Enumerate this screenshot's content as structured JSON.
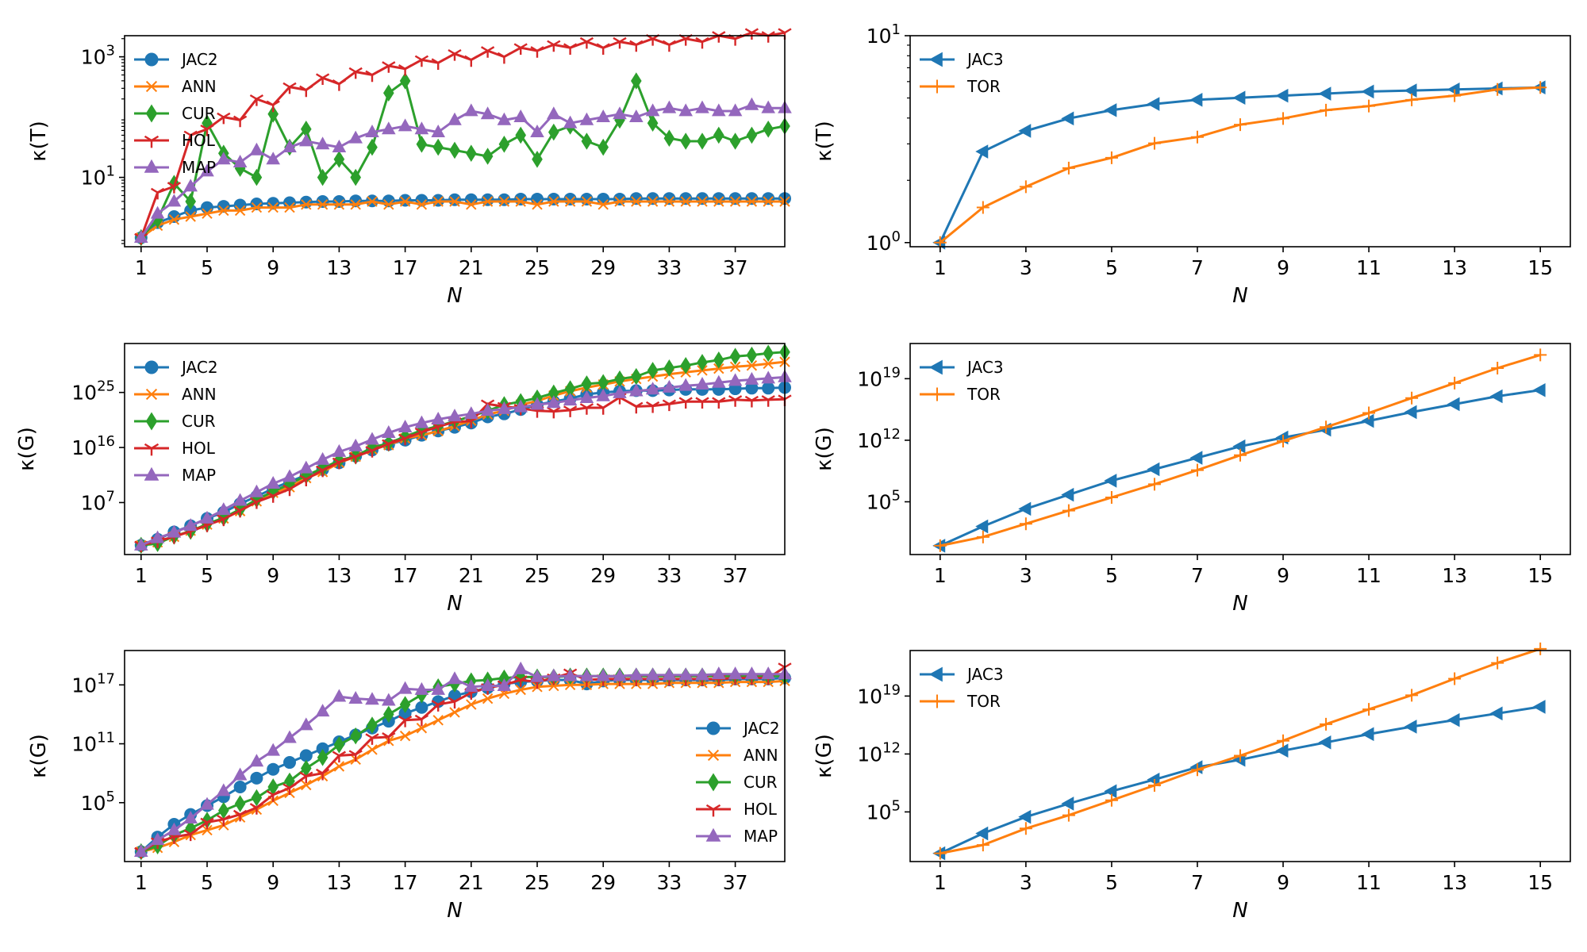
{
  "colors": {
    "JAC2": "#1f77b4",
    "JAC3": "#1f77b4",
    "ANN": "#ff7f0e",
    "TOR": "#ff7f0e",
    "CUR": "#2ca02c",
    "HOL": "#d62728",
    "MAP": "#9467bd"
  },
  "chart_data": [
    {
      "id": "left-top",
      "type": "line",
      "yscale": "log",
      "xlabel": "N",
      "ylabel": "κ(T)",
      "xlim": [
        0,
        40
      ],
      "ylim_log10": [
        -0.15,
        3.35
      ],
      "xticks": [
        1,
        5,
        9,
        13,
        17,
        21,
        25,
        29,
        33,
        37
      ],
      "yticks": [
        {
          "exp": 1,
          "label": "10^1"
        },
        {
          "exp": 3,
          "label": "10^3"
        }
      ],
      "legend_position": "upper-left",
      "x_start": 1,
      "series": [
        {
          "name": "JAC2",
          "marker": "circle",
          "log10_values": [
            0,
            0.25,
            0.35,
            0.45,
            0.5,
            0.52,
            0.54,
            0.56,
            0.57,
            0.58,
            0.59,
            0.6,
            0.6,
            0.61,
            0.61,
            0.61,
            0.62,
            0.62,
            0.62,
            0.63,
            0.63,
            0.63,
            0.63,
            0.64,
            0.64,
            0.64,
            0.64,
            0.64,
            0.64,
            0.64,
            0.65,
            0.65,
            0.65,
            0.65,
            0.65,
            0.65,
            0.65,
            0.65,
            0.65,
            0.65
          ]
        },
        {
          "name": "ANN",
          "marker": "x",
          "log10_values": [
            0,
            0.2,
            0.3,
            0.35,
            0.4,
            0.45,
            0.45,
            0.5,
            0.5,
            0.5,
            0.55,
            0.55,
            0.55,
            0.55,
            0.6,
            0.55,
            0.6,
            0.55,
            0.6,
            0.6,
            0.55,
            0.6,
            0.6,
            0.6,
            0.55,
            0.6,
            0.6,
            0.6,
            0.55,
            0.6,
            0.6,
            0.6,
            0.6,
            0.6,
            0.6,
            0.6,
            0.6,
            0.6,
            0.6,
            0.6
          ]
        },
        {
          "name": "CUR",
          "marker": "diamond",
          "log10_values": [
            0,
            0.3,
            0.9,
            0.6,
            1.9,
            1.4,
            1.15,
            1.0,
            2.05,
            1.5,
            1.8,
            1.0,
            1.3,
            1.0,
            1.5,
            2.4,
            2.6,
            1.55,
            1.5,
            1.45,
            1.4,
            1.35,
            1.55,
            1.7,
            1.3,
            1.75,
            1.85,
            1.6,
            1.5,
            1.95,
            2.6,
            1.9,
            1.65,
            1.6,
            1.6,
            1.7,
            1.6,
            1.7,
            1.8,
            1.85
          ]
        },
        {
          "name": "HOL",
          "marker": "tri",
          "log10_values": [
            0,
            0.75,
            0.85,
            1.7,
            1.8,
            2.0,
            1.95,
            2.3,
            2.2,
            2.5,
            2.45,
            2.65,
            2.55,
            2.75,
            2.7,
            2.85,
            2.8,
            2.95,
            2.9,
            3.05,
            2.95,
            3.1,
            3.0,
            3.15,
            3.1,
            3.2,
            3.15,
            3.25,
            3.15,
            3.25,
            3.2,
            3.3,
            3.2,
            3.3,
            3.25,
            3.35,
            3.3,
            3.4,
            3.35,
            3.4
          ]
        },
        {
          "name": "MAP",
          "marker": "triangle",
          "log10_values": [
            0,
            0.4,
            0.6,
            0.85,
            1.1,
            1.3,
            1.25,
            1.45,
            1.3,
            1.5,
            1.6,
            1.55,
            1.5,
            1.65,
            1.75,
            1.8,
            1.85,
            1.8,
            1.75,
            1.95,
            2.1,
            2.05,
            1.95,
            2.0,
            1.75,
            2.05,
            1.9,
            1.95,
            2.0,
            2.05,
            2.0,
            2.1,
            2.15,
            2.1,
            2.15,
            2.1,
            2.1,
            2.2,
            2.15,
            2.15
          ]
        }
      ]
    },
    {
      "id": "right-top",
      "type": "line",
      "yscale": "log",
      "xlabel": "N",
      "ylabel": "κ(T)",
      "xlim": [
        0.3,
        15.7
      ],
      "ylim_log10": [
        -0.02,
        1.0
      ],
      "xticks": [
        1,
        3,
        5,
        7,
        9,
        11,
        13,
        15
      ],
      "yticks": [
        {
          "exp": 0,
          "label": "10^0"
        },
        {
          "exp": 1,
          "label": "10^1"
        }
      ],
      "legend_position": "upper-left",
      "x_start": 1,
      "series": [
        {
          "name": "JAC3",
          "marker": "triangle-left",
          "log10_values": [
            0,
            0.44,
            0.54,
            0.6,
            0.64,
            0.67,
            0.69,
            0.7,
            0.71,
            0.72,
            0.73,
            0.735,
            0.74,
            0.745,
            0.75
          ]
        },
        {
          "name": "TOR",
          "marker": "plus",
          "log10_values": [
            0,
            0.17,
            0.27,
            0.36,
            0.41,
            0.48,
            0.51,
            0.57,
            0.6,
            0.64,
            0.66,
            0.69,
            0.71,
            0.74,
            0.75
          ]
        }
      ]
    },
    {
      "id": "left-middle",
      "type": "line",
      "yscale": "log",
      "xlabel": "N",
      "ylabel": "κ(G)",
      "xlim": [
        0,
        40
      ],
      "ylim_log10": [
        -1.5,
        33
      ],
      "xticks": [
        1,
        5,
        9,
        13,
        17,
        21,
        25,
        29,
        33,
        37
      ],
      "yticks": [
        {
          "exp": 7,
          "label": "10^7"
        },
        {
          "exp": 16,
          "label": "10^16"
        },
        {
          "exp": 25,
          "label": "10^25"
        }
      ],
      "legend_position": "upper-left",
      "x_start": 1,
      "series": [
        {
          "name": "JAC2",
          "marker": "circle",
          "log10_values": [
            0,
            1,
            2.2,
            3.2,
            4.4,
            5.4,
            6.8,
            8,
            9.3,
            10.4,
            11.5,
            12.4,
            13.5,
            14.6,
            15.6,
            16.5,
            17.2,
            18,
            18.7,
            19.3,
            20,
            21,
            21.5,
            22.2,
            23,
            23.5,
            24,
            24.7,
            25,
            25.2,
            25.3,
            25.3,
            25.4,
            25.5,
            25.5,
            25.5,
            25.6,
            25.7,
            25.7,
            25.8
          ]
        },
        {
          "name": "ANN",
          "marker": "x",
          "log10_values": [
            0,
            0.5,
            1.4,
            2.4,
            3.4,
            4.4,
            5.6,
            7.2,
            8.6,
            9.5,
            11,
            12,
            13.5,
            14.5,
            15.7,
            16.4,
            17.5,
            18,
            18.7,
            19.5,
            20.4,
            21.4,
            22,
            23,
            23.6,
            24.5,
            25.2,
            25.8,
            26.3,
            26.8,
            27.2,
            27.6,
            28,
            28.3,
            28.6,
            28.9,
            29.2,
            29.4,
            29.7,
            30
          ]
        },
        {
          "name": "CUR",
          "marker": "diamond",
          "log10_values": [
            0,
            0.3,
            1.5,
            2.3,
            3.5,
            4.5,
            5.9,
            7.5,
            8.8,
            10,
            11.4,
            12.6,
            13.9,
            14.6,
            16,
            16.7,
            17.8,
            18.8,
            19.5,
            20.3,
            21.1,
            22,
            23,
            23.5,
            24.1,
            24.9,
            25.6,
            26.4,
            26.6,
            27.2,
            27.6,
            28.6,
            29,
            29.4,
            29.9,
            30.3,
            30.9,
            31.1,
            31.4,
            31.6
          ]
        },
        {
          "name": "HOL",
          "marker": "tri",
          "log10_values": [
            0,
            0.7,
            1.4,
            2.3,
            3.3,
            4.3,
            5.7,
            7.1,
            8.1,
            9.2,
            10.8,
            12.3,
            13.6,
            14.5,
            15.5,
            16.6,
            17.5,
            18.5,
            19.4,
            20.2,
            20.3,
            23.1,
            22.7,
            22.4,
            22,
            21.9,
            22.1,
            22.5,
            22.5,
            24.2,
            22.7,
            22.8,
            23.1,
            23.5,
            23.5,
            23.5,
            23.8,
            23.7,
            23.8,
            23.9
          ]
        },
        {
          "name": "MAP",
          "marker": "triangle",
          "log10_values": [
            0,
            1.2,
            2.1,
            3.2,
            4.4,
            5.8,
            7.3,
            8.7,
            10.1,
            11.2,
            12.6,
            14,
            15.3,
            16.2,
            17.3,
            18.4,
            19.3,
            20,
            20.6,
            21.1,
            21.5,
            22,
            22.3,
            22.6,
            23,
            23.3,
            23.7,
            24.1,
            24.4,
            24.9,
            25.2,
            25.5,
            25.8,
            26.1,
            26.3,
            26.6,
            26.9,
            27.1,
            27.3,
            27.5
          ]
        }
      ]
    },
    {
      "id": "right-middle",
      "type": "line",
      "yscale": "log",
      "xlabel": "N",
      "ylabel": "κ(G)",
      "xlim": [
        0.3,
        15.7
      ],
      "ylim_log10": [
        -1,
        23
      ],
      "xticks": [
        1,
        3,
        5,
        7,
        9,
        11,
        13,
        15
      ],
      "yticks": [
        {
          "exp": 5,
          "label": "10^5"
        },
        {
          "exp": 12,
          "label": "10^12"
        },
        {
          "exp": 19,
          "label": "10^19"
        }
      ],
      "legend_position": "upper-left",
      "x_start": 1,
      "series": [
        {
          "name": "JAC3",
          "marker": "triangle-left",
          "log10_values": [
            0,
            2.2,
            4.2,
            5.8,
            7.4,
            8.7,
            10,
            11.3,
            12.3,
            13.2,
            14.2,
            15.2,
            16.1,
            17,
            17.7
          ]
        },
        {
          "name": "TOR",
          "marker": "plus",
          "log10_values": [
            0,
            1.0,
            2.5,
            4.0,
            5.5,
            7.0,
            8.6,
            10.3,
            11.9,
            13.5,
            15.1,
            16.8,
            18.5,
            20.2,
            21.7
          ]
        }
      ]
    },
    {
      "id": "left-bottom",
      "type": "line",
      "yscale": "log",
      "xlabel": "N",
      "ylabel": "κ(G)",
      "xlim": [
        0,
        40
      ],
      "ylim_log10": [
        -1,
        20.5
      ],
      "xticks": [
        1,
        5,
        9,
        13,
        17,
        21,
        25,
        29,
        33,
        37
      ],
      "yticks": [
        {
          "exp": 5,
          "label": "10^5"
        },
        {
          "exp": 11,
          "label": "10^11"
        },
        {
          "exp": 17,
          "label": "10^17"
        }
      ],
      "legend_position": "center-right",
      "x_start": 1,
      "series": [
        {
          "name": "JAC2",
          "marker": "circle",
          "log10_values": [
            0,
            1.5,
            2.8,
            3.8,
            4.7,
            5.6,
            6.6,
            7.5,
            8.4,
            9.1,
            9.8,
            10.5,
            11.2,
            11.9,
            12.6,
            13.3,
            14.1,
            14.7,
            15.3,
            15.9,
            16.3,
            16.7,
            17.1,
            17.3,
            17.4,
            17.5,
            17.5,
            17.1,
            17.4,
            17.5,
            17.5,
            17.5,
            17.5,
            17.5,
            17.5,
            17.5,
            17.6,
            17.6,
            17.6,
            17.7
          ]
        },
        {
          "name": "ANN",
          "marker": "x",
          "log10_values": [
            0,
            0.4,
            1,
            1.7,
            2.2,
            2.7,
            3.5,
            4.3,
            5.2,
            6,
            6.8,
            7.7,
            8.7,
            9.4,
            10.4,
            11.3,
            11.8,
            12.6,
            13.4,
            14.2,
            15,
            15.6,
            16.1,
            16.5,
            16.8,
            16.9,
            17,
            17,
            17.1,
            17.1,
            17.1,
            17.1,
            17.2,
            17.2,
            17.2,
            17.2,
            17.3,
            17.3,
            17.3,
            17.4
          ]
        },
        {
          "name": "CUR",
          "marker": "diamond",
          "log10_values": [
            0,
            0.6,
            1.7,
            2.4,
            3.2,
            4.2,
            4.9,
            5.5,
            6.6,
            7.2,
            8.5,
            9.6,
            10.9,
            11.8,
            12.9,
            14,
            15,
            16,
            16.8,
            17.1,
            17.4,
            17.5,
            17.7,
            17.8,
            17.8,
            17.8,
            17.9,
            17.9,
            17.9,
            17.9,
            17.9,
            17.9,
            17.9,
            17.9,
            17.9,
            17.9,
            17.9,
            17.9,
            17.9,
            17.9
          ]
        },
        {
          "name": "HOL",
          "marker": "tri",
          "log10_values": [
            0,
            1,
            1.5,
            1.8,
            3,
            3.3,
            3.8,
            4.5,
            5.8,
            6.5,
            7.7,
            8,
            9.8,
            9.9,
            11.6,
            11.7,
            13.4,
            13.5,
            15,
            15.3,
            16.2,
            16.7,
            17,
            17.5,
            17.3,
            17.7,
            18.2,
            17.5,
            17.6,
            17.6,
            17.6,
            17.6,
            17.6,
            17.6,
            17.6,
            17.6,
            17.7,
            17.7,
            17.7,
            18.8
          ]
        },
        {
          "name": "MAP",
          "marker": "triangle",
          "log10_values": [
            0,
            1.2,
            2.2,
            3.4,
            4.8,
            6.2,
            7.8,
            9.2,
            10.3,
            11.6,
            12.9,
            14.3,
            15.8,
            15.6,
            15.5,
            15.4,
            16.6,
            16.5,
            16.5,
            17.6,
            16.8,
            16.9,
            16.9,
            18.6,
            17.8,
            17.9,
            17.9,
            17.9,
            17.9,
            17.9,
            18,
            18,
            18,
            18,
            18,
            18.1,
            18.1,
            18.1,
            18.1,
            18.1
          ]
        }
      ]
    },
    {
      "id": "right-bottom",
      "type": "line",
      "yscale": "log",
      "xlabel": "N",
      "ylabel": "κ(G)",
      "xlim": [
        0.3,
        15.7
      ],
      "ylim_log10": [
        -1,
        24.5
      ],
      "xticks": [
        1,
        3,
        5,
        7,
        9,
        11,
        13,
        15
      ],
      "yticks": [
        {
          "exp": 5,
          "label": "10^5"
        },
        {
          "exp": 12,
          "label": "10^12"
        },
        {
          "exp": 19,
          "label": "10^19"
        }
      ],
      "legend_position": "upper-left",
      "x_start": 1,
      "series": [
        {
          "name": "JAC3",
          "marker": "triangle-left",
          "log10_values": [
            0,
            2.4,
            4.4,
            6,
            7.5,
            8.9,
            10.4,
            11.3,
            12.4,
            13.4,
            14.4,
            15.3,
            16.1,
            16.9,
            17.7
          ]
        },
        {
          "name": "TOR",
          "marker": "plus",
          "log10_values": [
            0,
            1,
            3,
            4.6,
            6.4,
            8.2,
            10.1,
            11.8,
            13.6,
            15.6,
            17.4,
            19.1,
            21.1,
            23,
            24.7
          ]
        }
      ]
    }
  ]
}
